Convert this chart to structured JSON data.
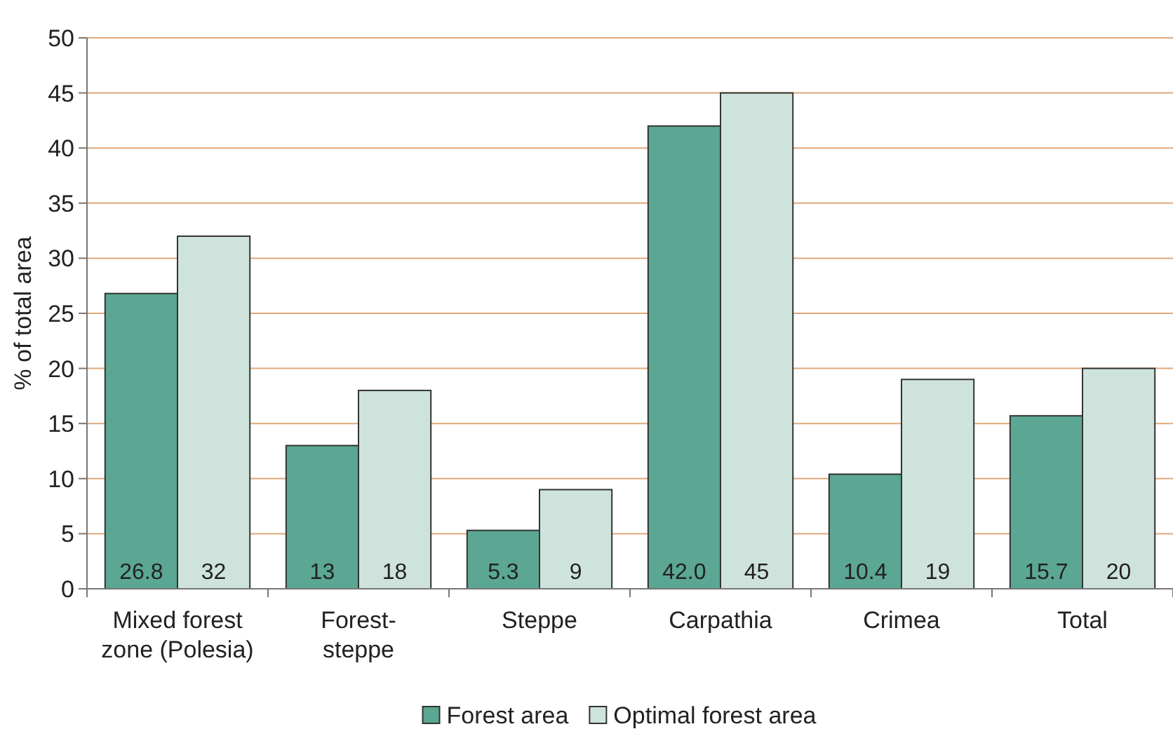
{
  "chart_data": {
    "type": "bar",
    "ylabel": "% of total area",
    "categories": [
      "Mixed forest zone (Polesia)",
      "Forest-steppe",
      "Steppe",
      "Carpathia",
      "Crimea",
      "Total"
    ],
    "series": [
      {
        "name": "Forest area",
        "color": "#5ba793",
        "values": [
          26.8,
          13,
          5.3,
          42.0,
          10.4,
          15.7
        ],
        "value_labels": [
          "26.8",
          "13",
          "5.3",
          "42.0",
          "10.4",
          "15.7"
        ]
      },
      {
        "name": "Optimal forest area",
        "color": "#cfe3dd",
        "values": [
          32,
          18,
          9,
          45,
          19,
          20
        ],
        "value_labels": [
          "32",
          "18",
          "9",
          "45",
          "19",
          "20"
        ]
      }
    ],
    "ylim": [
      0,
      50
    ],
    "yticks": [
      0,
      5,
      10,
      15,
      20,
      25,
      30,
      35,
      40,
      45,
      50
    ],
    "grid": "y",
    "legend": "bottom"
  }
}
